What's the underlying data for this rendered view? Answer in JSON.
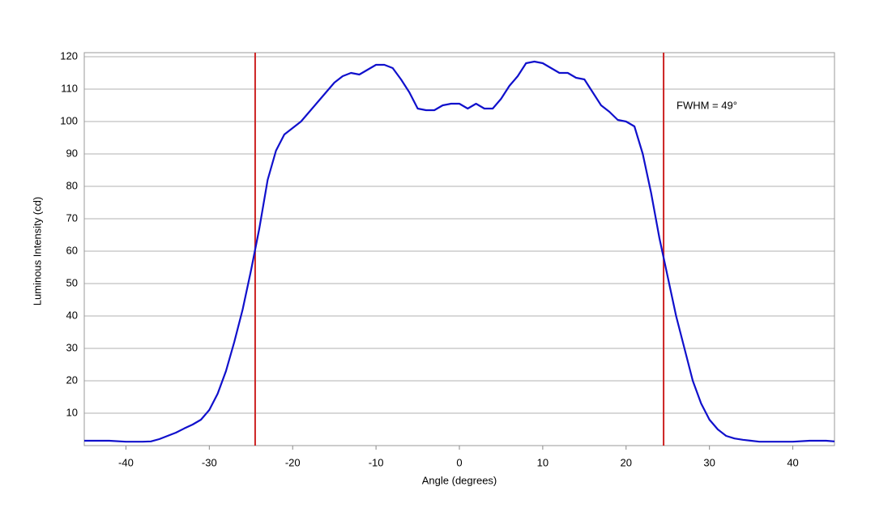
{
  "chart_data": {
    "type": "line",
    "x_label": "Angle (degrees)",
    "y_label": "Luminous Intensity (cd)",
    "annotation": "FWHM = 49°",
    "xlim": [
      -45,
      45
    ],
    "ylim": [
      0,
      120
    ],
    "xticks": [
      -40,
      -30,
      -20,
      -10,
      0,
      10,
      20,
      30,
      40
    ],
    "yticks": [
      10,
      20,
      30,
      40,
      50,
      60,
      70,
      80,
      90,
      100,
      110,
      120
    ],
    "grid": true,
    "markers": {
      "values": [
        -24.5,
        24.5
      ],
      "color": "#cc2222"
    },
    "x": [
      -45,
      -44,
      -42,
      -40,
      -38,
      -37,
      -36,
      -35,
      -34,
      -33,
      -32,
      -31,
      -30,
      -29,
      -28,
      -27,
      -26,
      -25,
      -24,
      -23,
      -22,
      -21,
      -20,
      -19,
      -18,
      -17,
      -16,
      -15,
      -14,
      -13,
      -12,
      -11,
      -10,
      -9,
      -8,
      -7,
      -6,
      -5,
      -4,
      -3,
      -2,
      -1,
      0,
      1,
      2,
      3,
      4,
      5,
      6,
      7,
      8,
      9,
      10,
      11,
      12,
      13,
      14,
      15,
      16,
      17,
      18,
      19,
      20,
      21,
      22,
      23,
      24,
      25,
      26,
      27,
      28,
      29,
      30,
      31,
      32,
      33,
      34,
      35,
      36,
      38,
      40,
      42,
      44,
      45
    ],
    "series": [
      {
        "color": "#1010cc",
        "values": [
          1.5,
          1.5,
          1.5,
          1.2,
          1.2,
          1.3,
          2,
          3,
          4,
          5.3,
          6.5,
          8,
          11,
          16,
          23,
          32,
          42,
          54,
          67,
          82,
          91,
          96,
          98,
          100,
          103,
          106,
          109,
          112,
          114,
          115,
          114.5,
          116,
          117.5,
          117.5,
          116.5,
          113,
          109,
          104,
          103.5,
          103.5,
          105,
          105.5,
          105.5,
          104,
          105.5,
          104,
          104,
          107,
          111,
          114,
          118,
          118.5,
          118,
          116.5,
          115,
          115,
          113.5,
          113,
          109,
          105,
          103,
          100.5,
          100,
          98.5,
          90,
          78,
          64,
          52,
          40,
          30,
          20,
          13,
          8,
          5,
          3,
          2.2,
          1.8,
          1.5,
          1.2,
          1.2,
          1.2,
          1.5,
          1.5,
          1.3
        ]
      }
    ]
  }
}
